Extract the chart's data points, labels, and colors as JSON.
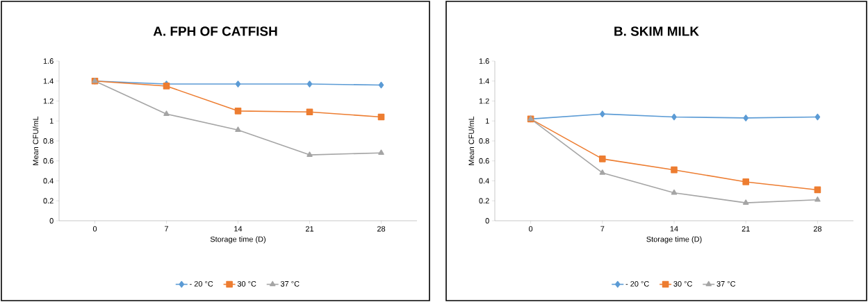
{
  "chart_data": [
    {
      "type": "line",
      "title": "A. FPH OF CATFISH",
      "xlabel": "Storage time (D)",
      "ylabel": "Mean CFU/mL",
      "categories": [
        "0",
        "7",
        "14",
        "21",
        "28"
      ],
      "ylim": [
        0,
        1.6
      ],
      "yticks": [
        0,
        0.2,
        0.4,
        0.6,
        0.8,
        1,
        1.2,
        1.4,
        1.6
      ],
      "legend": "bottom",
      "grid": false,
      "line_style": "solid",
      "series": [
        {
          "name": "- 20 °C",
          "color": "#5b9bd5",
          "marker": "diamond",
          "values": [
            1.4,
            1.37,
            1.37,
            1.37,
            1.36
          ]
        },
        {
          "name": "30 °C",
          "color": "#ed7d31",
          "marker": "square",
          "values": [
            1.4,
            1.35,
            1.1,
            1.09,
            1.04
          ]
        },
        {
          "name": "37 °C",
          "color": "#a5a5a5",
          "marker": "triangle",
          "values": [
            1.4,
            1.07,
            0.91,
            0.66,
            0.68
          ]
        }
      ]
    },
    {
      "type": "line",
      "title": "B. SKIM MILK",
      "xlabel": "Storage time (D)",
      "ylabel": "Mean CFU/mL",
      "categories": [
        "0",
        "7",
        "14",
        "21",
        "28"
      ],
      "ylim": [
        0,
        1.6
      ],
      "yticks": [
        0,
        0.2,
        0.4,
        0.6,
        0.8,
        1,
        1.2,
        1.4,
        1.6
      ],
      "legend": "bottom",
      "grid": false,
      "line_style": "solid",
      "series": [
        {
          "name": "- 20 °C",
          "color": "#5b9bd5",
          "marker": "diamond",
          "values": [
            1.02,
            1.07,
            1.04,
            1.03,
            1.04
          ]
        },
        {
          "name": "30 °C",
          "color": "#ed7d31",
          "marker": "square",
          "values": [
            1.02,
            0.62,
            0.51,
            0.39,
            0.31
          ]
        },
        {
          "name": "37 °C",
          "color": "#a5a5a5",
          "marker": "triangle",
          "values": [
            1.02,
            0.48,
            0.28,
            0.18,
            0.21
          ]
        }
      ]
    }
  ]
}
